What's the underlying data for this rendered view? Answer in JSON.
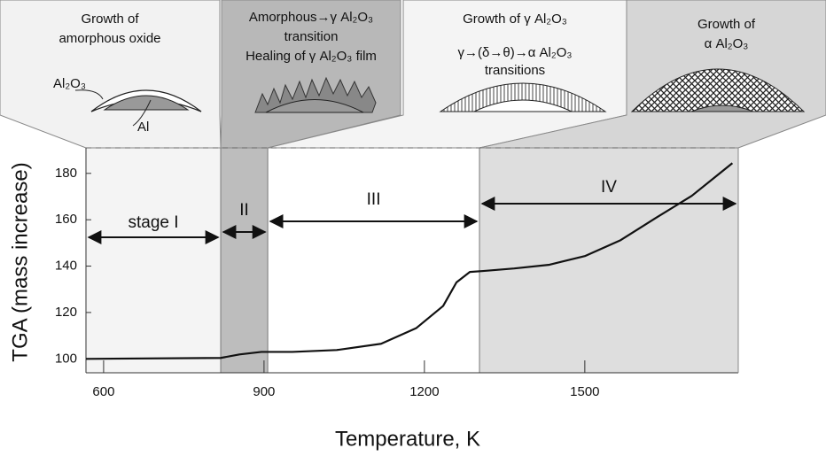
{
  "chart_data": {
    "type": "line",
    "x_label": "Temperature, K",
    "y_label": "TGA (mass increase)",
    "x": [
      567,
      819,
      854,
      895,
      953,
      1036,
      1119,
      1185,
      1235,
      1260,
      1285,
      1310,
      1368,
      1434,
      1501,
      1567,
      1633,
      1700,
      1749,
      1776
    ],
    "values": [
      100,
      100.4,
      101.9,
      103,
      103,
      103.8,
      106.5,
      113.3,
      122.8,
      133,
      137.5,
      137.9,
      139,
      140.6,
      144.4,
      151.2,
      160.8,
      170.3,
      179.4,
      184.4
    ],
    "color": "#111111",
    "xlim": [
      567,
      1787
    ],
    "ylim": [
      94,
      191
    ],
    "xticks": [
      600,
      900,
      1200,
      1500
    ],
    "yticks": [
      100,
      120,
      140,
      160,
      180
    ],
    "grid": false,
    "boundaries": [
      819,
      907,
      1303
    ],
    "stages": [
      {
        "name": "stage I",
        "color": "#f4f4f4",
        "panel_color": "#f2f2f2",
        "panel_text": [
          "Growth of",
          "amorphous oxide"
        ],
        "illustration_labels": [
          "Al₂O₃",
          "Al"
        ]
      },
      {
        "name": "II",
        "color": "#bdbdbd",
        "panel_color": "#b8b8b8",
        "panel_text": [
          "Amorphous→γ Al₂O₃",
          "transition",
          "Healing of γ Al₂O₃ film"
        ]
      },
      {
        "name": "III",
        "color": "#ffffff",
        "panel_color": "#f4f4f4",
        "panel_text": [
          "Growth of  γ Al₂O₃",
          "γ→(δ→θ)→α Al₂O₃",
          "transitions"
        ]
      },
      {
        "name": "IV",
        "color": "#dedede",
        "panel_color": "#d6d6d6",
        "panel_text": [
          "Growth of",
          "α Al₂O₃"
        ]
      }
    ]
  }
}
